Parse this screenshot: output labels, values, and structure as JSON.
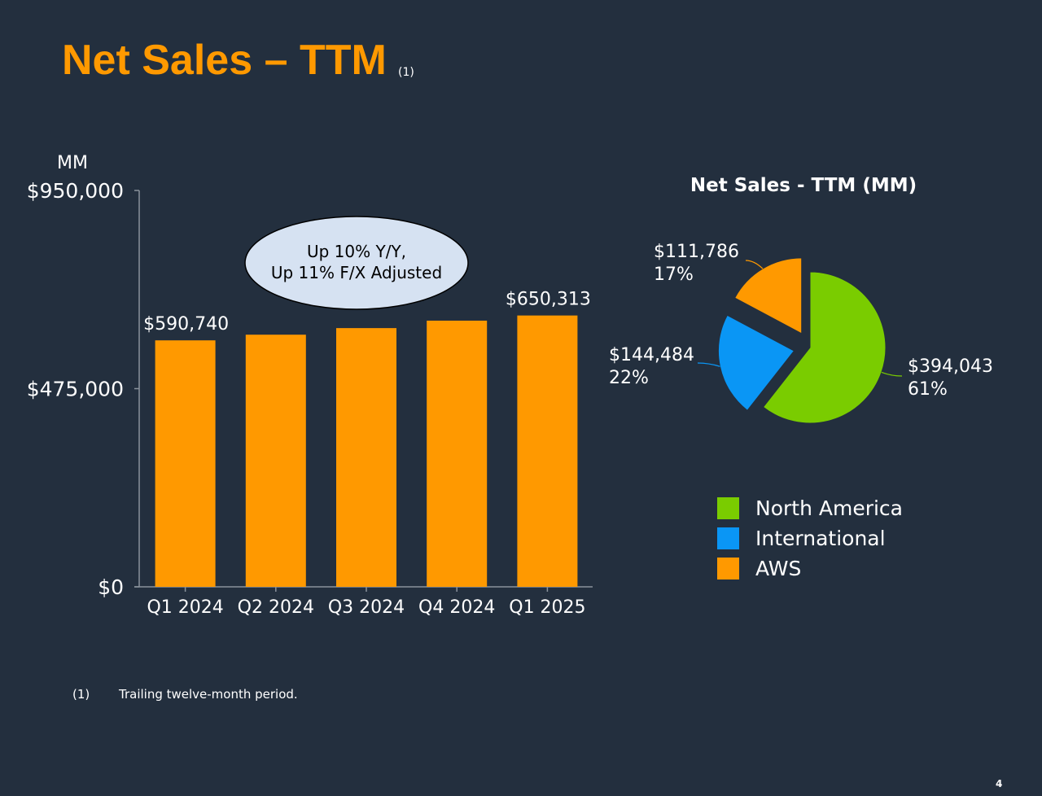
{
  "title": "Net Sales – TTM",
  "title_note": "(1)",
  "footnote": {
    "marker": "(1)",
    "text": "Trailing twelve-month period."
  },
  "page_number": "4",
  "callout": {
    "line1": "Up 10% Y/Y,",
    "line2": "Up 11% F/X Adjusted"
  },
  "colors": {
    "background": "#232f3e",
    "bar": "#ff9900",
    "title": "#ff9900",
    "callout_fill": "#d6e2f2",
    "north_america": "#7acc00",
    "international": "#0a96f5",
    "aws": "#ff9900"
  },
  "chart_data": [
    {
      "type": "bar",
      "ylabel": "MM",
      "ylim": [
        0,
        950000
      ],
      "yticks": [
        "$0",
        "$475,000",
        "$950,000"
      ],
      "categories": [
        "Q1 2024",
        "Q2 2024",
        "Q3 2024",
        "Q4 2024",
        "Q1 2025"
      ],
      "values": [
        590740,
        604300,
        620100,
        637959,
        650313
      ],
      "data_labels": [
        "$590,740",
        "",
        "",
        "",
        "$650,313"
      ]
    },
    {
      "type": "pie",
      "title": "Net Sales - TTM (MM)",
      "slices": [
        {
          "name": "North America",
          "value": 394043,
          "value_label": "$394,043",
          "percent_label": "61%"
        },
        {
          "name": "International",
          "value": 144484,
          "value_label": "$144,484",
          "percent_label": "22%"
        },
        {
          "name": "AWS",
          "value": 111786,
          "value_label": "$111,786",
          "percent_label": "17%"
        }
      ]
    }
  ]
}
